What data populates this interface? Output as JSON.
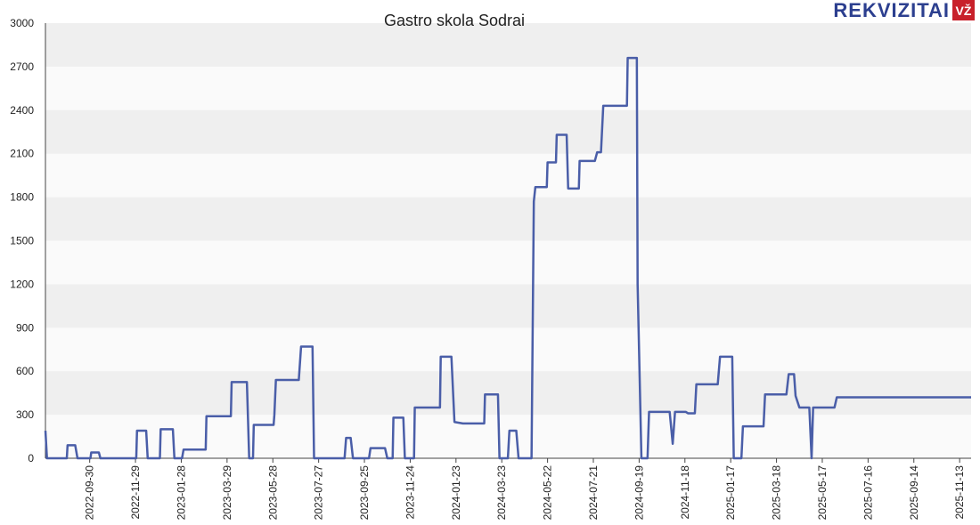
{
  "brand": {
    "name": "REKVIZITAI",
    "badge": "VŽ"
  },
  "chart_data": {
    "type": "line",
    "title": "Gastro skola Sodrai",
    "x": [
      "2022-08-03",
      "2022-08-05",
      "2022-08-31",
      "2022-09-01",
      "2022-09-11",
      "2022-09-14",
      "2022-10-01",
      "2022-10-02",
      "2022-10-12",
      "2022-10-14",
      "2022-11-30",
      "2022-12-01",
      "2022-12-13",
      "2022-12-15",
      "2022-12-31",
      "2023-01-01",
      "2023-01-17",
      "2023-01-19",
      "2023-01-29",
      "2023-01-31",
      "2023-03-01",
      "2023-03-02",
      "2023-04-03",
      "2023-04-04",
      "2023-04-24",
      "2023-04-27",
      "2023-05-02",
      "2023-05-03",
      "2023-05-29",
      "2023-05-30",
      "2023-06-01",
      "2023-07-01",
      "2023-07-04",
      "2023-07-19",
      "2023-07-21",
      "2023-08-30",
      "2023-09-01",
      "2023-09-07",
      "2023-09-10",
      "2023-10-01",
      "2023-10-03",
      "2023-10-22",
      "2023-10-25",
      "2023-11-01",
      "2023-11-02",
      "2023-11-15",
      "2023-11-17",
      "2023-11-29",
      "2023-11-30",
      "2024-01-02",
      "2024-01-03",
      "2024-01-17",
      "2024-01-21",
      "2024-02-01",
      "2024-02-29",
      "2024-03-01",
      "2024-03-18",
      "2024-03-20",
      "2024-03-31",
      "2024-04-02",
      "2024-04-11",
      "2024-04-14",
      "2024-05-01",
      "2024-05-04",
      "2024-05-06",
      "2024-05-21",
      "2024-05-22",
      "2024-06-02",
      "2024-06-03",
      "2024-06-16",
      "2024-06-18",
      "2024-07-02",
      "2024-07-03",
      "2024-07-23",
      "2024-07-26",
      "2024-07-31",
      "2024-08-03",
      "2024-09-03",
      "2024-09-04",
      "2024-09-16",
      "2024-09-17",
      "2024-09-22",
      "2024-09-30",
      "2024-10-02",
      "2024-10-29",
      "2024-11-02",
      "2024-11-05",
      "2024-11-19",
      "2024-11-22",
      "2024-12-01",
      "2024-12-03",
      "2024-12-31",
      "2025-01-03",
      "2025-01-19",
      "2025-01-21",
      "2025-01-31",
      "2025-02-02",
      "2025-03-01",
      "2025-03-03",
      "2025-03-31",
      "2025-04-03",
      "2025-04-10",
      "2025-04-12",
      "2025-04-17",
      "2025-04-30",
      "2025-05-03",
      "2025-05-05",
      "2025-06-02",
      "2025-06-05",
      "2025-11-28"
    ],
    "values": [
      190,
      0,
      0,
      90,
      90,
      0,
      0,
      40,
      40,
      0,
      0,
      190,
      190,
      0,
      0,
      200,
      200,
      0,
      0,
      60,
      60,
      290,
      290,
      525,
      525,
      0,
      0,
      230,
      230,
      300,
      540,
      540,
      770,
      770,
      0,
      0,
      140,
      140,
      0,
      0,
      70,
      70,
      0,
      0,
      280,
      280,
      0,
      0,
      350,
      350,
      700,
      700,
      250,
      240,
      240,
      440,
      440,
      0,
      0,
      190,
      190,
      0,
      0,
      1770,
      1870,
      1870,
      2040,
      2040,
      2230,
      2230,
      1860,
      1860,
      2050,
      2050,
      2110,
      2110,
      2430,
      2430,
      2760,
      2760,
      1200,
      0,
      0,
      320,
      320,
      100,
      320,
      320,
      310,
      310,
      510,
      510,
      700,
      700,
      0,
      0,
      220,
      220,
      440,
      440,
      580,
      580,
      430,
      350,
      350,
      0,
      350,
      350,
      420,
      420
    ],
    "color": "#4a5ea8",
    "xlim": [
      "2022-08-03",
      "2025-11-28"
    ],
    "xticks": [
      "2022-09-30",
      "2022-11-29",
      "2023-01-28",
      "2023-03-29",
      "2023-05-28",
      "2023-07-27",
      "2023-09-25",
      "2023-11-24",
      "2024-01-23",
      "2024-03-23",
      "2024-05-22",
      "2024-07-21",
      "2024-09-19",
      "2024-11-18",
      "2025-01-17",
      "2025-03-18",
      "2025-05-17",
      "2025-07-16",
      "2025-09-14",
      "2025-11-13"
    ],
    "ylim": [
      0,
      3000
    ],
    "yticks": [
      0,
      300,
      600,
      900,
      1200,
      1500,
      1800,
      2100,
      2400,
      2700,
      3000
    ],
    "grid": true
  }
}
